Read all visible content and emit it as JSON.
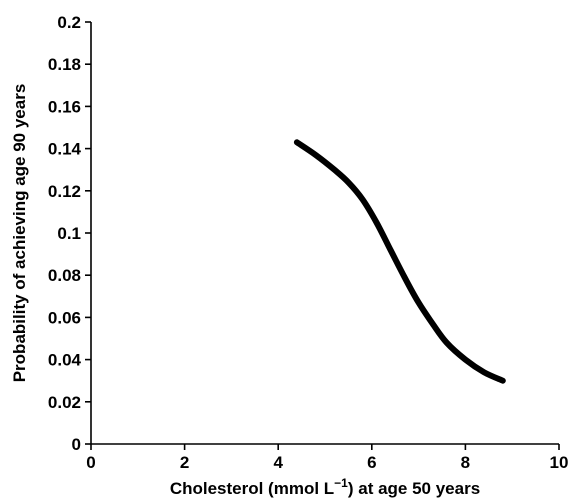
{
  "chart_data": {
    "type": "line",
    "title": "",
    "xlabel_main": "Cholesterol (mmol L",
    "xlabel_sup": "−1",
    "xlabel_tail": ") at age 50 years",
    "ylabel": "Probability of achieving age 90 years",
    "xlim": [
      0,
      10
    ],
    "ylim": [
      0,
      0.2
    ],
    "xticks": [
      "0",
      "2",
      "4",
      "6",
      "8",
      "10"
    ],
    "yticks": [
      "0",
      "0.02",
      "0.04",
      "0.06",
      "0.08",
      "0.1",
      "0.12",
      "0.14",
      "0.16",
      "0.18",
      "0.2"
    ],
    "grid": false,
    "legend": "none",
    "series": [
      {
        "x": [
          4.4,
          4.8,
          5.2,
          5.5,
          5.8,
          6.1,
          6.4,
          6.7,
          7.0,
          7.3,
          7.6,
          8.0,
          8.4,
          8.8
        ],
        "y": [
          0.143,
          0.137,
          0.13,
          0.124,
          0.116,
          0.105,
          0.092,
          0.079,
          0.067,
          0.057,
          0.048,
          0.04,
          0.034,
          0.03
        ]
      }
    ],
    "line_color": "#000000"
  }
}
